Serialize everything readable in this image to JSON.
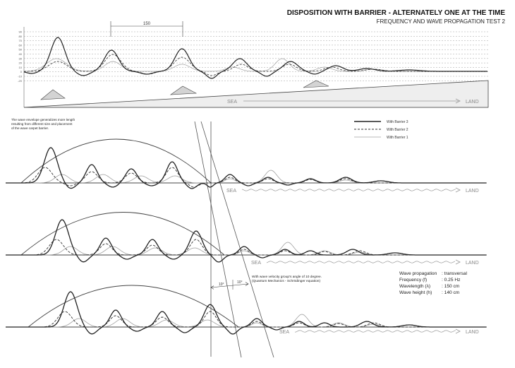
{
  "header": {
    "title": "DISPOSITION WITH BARRIER - ALTERNATELY ONE AT THE TIME",
    "subtitle": "FREQUENCY AND WAVE PROPAGATION TEST 2"
  },
  "top_panel": {
    "y_ticks": [
      "90",
      "80",
      "70",
      "60",
      "50",
      "40",
      "30",
      "20",
      "10",
      "0",
      "-10",
      "-20"
    ],
    "dimension_label": "150",
    "sea_label": "SEA",
    "land_label": "LAND"
  },
  "notes": {
    "envelope_note": [
      "The wave envelope generalizes more length",
      "resulting from different size and placement",
      "of the wave carpet barrier."
    ],
    "velocity_note": [
      "With wave velocity group's angle of 10 degree.",
      "(Quantum Mechanics - Schrödinger equation)"
    ],
    "angle_label_1": "10°",
    "angle_label_2": "10°"
  },
  "legend": {
    "items": [
      {
        "label": "With Barrier 3",
        "style": "solid-thick"
      },
      {
        "label": "With Barrier 2",
        "style": "dashed"
      },
      {
        "label": "With Barrier 1",
        "style": "solid-thin"
      }
    ]
  },
  "panels": [
    {
      "sea_label": "SEA",
      "land_label": "LAND"
    },
    {
      "sea_label": "SEA",
      "land_label": "LAND"
    },
    {
      "sea_label": "SEA",
      "land_label": "LAND"
    }
  ],
  "specs": {
    "rows": [
      {
        "label": "Wave propagation",
        "value": ": transversal"
      },
      {
        "label": "Frequency (f)",
        "value": ": 0.25 Hz"
      },
      {
        "label": "Wavelength (λ)",
        "value": ": 150 cm"
      },
      {
        "label": "Wave height (h)",
        "value": ": 140 cm"
      }
    ]
  },
  "colors": {
    "ink": "#222222",
    "mid": "#555555",
    "light": "#9a9a9a",
    "grid": "#8a8a8a",
    "shade": "#d9d9d9"
  }
}
